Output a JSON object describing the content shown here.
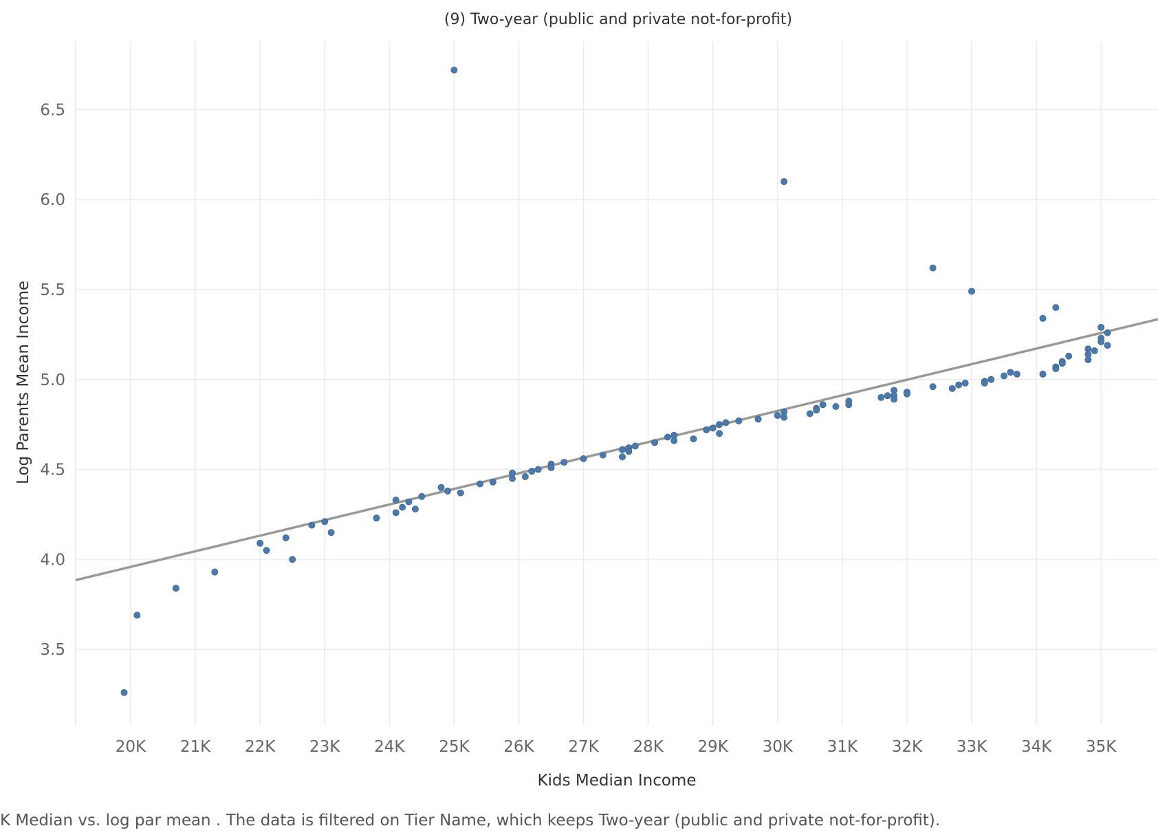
{
  "chart_data": {
    "type": "scatter",
    "title": "(9) Two-year (public and private not-for-profit)",
    "xlabel": "Kids Median Income",
    "ylabel": "Log Parents Mean Income",
    "xlim": [
      19150,
      35880
    ],
    "ylim": [
      3.08,
      6.88
    ],
    "x_ticks": [
      20000,
      21000,
      22000,
      23000,
      24000,
      25000,
      26000,
      27000,
      28000,
      29000,
      30000,
      31000,
      32000,
      33000,
      34000,
      35000
    ],
    "x_tick_labels": [
      "20K",
      "21K",
      "22K",
      "23K",
      "24K",
      "25K",
      "26K",
      "27K",
      "28K",
      "29K",
      "30K",
      "31K",
      "32K",
      "33K",
      "34K",
      "35K"
    ],
    "y_ticks": [
      3.5,
      4.0,
      4.5,
      5.0,
      5.5,
      6.0,
      6.5
    ],
    "y_tick_labels": [
      "3.5",
      "4.0",
      "4.5",
      "5.0",
      "5.5",
      "6.0",
      "6.5"
    ],
    "grid": true,
    "point_color": "#4e79a7",
    "trend_color": "#999999",
    "trend_line": {
      "x": [
        19150,
        35880
      ],
      "y": [
        3.885,
        5.335
      ]
    },
    "points": [
      {
        "x": 19900,
        "y": 3.26
      },
      {
        "x": 20100,
        "y": 3.69
      },
      {
        "x": 20700,
        "y": 3.84
      },
      {
        "x": 21300,
        "y": 3.93
      },
      {
        "x": 22000,
        "y": 4.09
      },
      {
        "x": 22100,
        "y": 4.05
      },
      {
        "x": 22400,
        "y": 4.12
      },
      {
        "x": 22500,
        "y": 4.0
      },
      {
        "x": 22800,
        "y": 4.19
      },
      {
        "x": 23000,
        "y": 4.21
      },
      {
        "x": 23100,
        "y": 4.15
      },
      {
        "x": 23800,
        "y": 4.23
      },
      {
        "x": 24100,
        "y": 4.33
      },
      {
        "x": 24100,
        "y": 4.26
      },
      {
        "x": 24200,
        "y": 4.29
      },
      {
        "x": 24300,
        "y": 4.32
      },
      {
        "x": 24400,
        "y": 4.28
      },
      {
        "x": 24500,
        "y": 4.35
      },
      {
        "x": 24800,
        "y": 4.4
      },
      {
        "x": 24900,
        "y": 4.38
      },
      {
        "x": 25000,
        "y": 6.72
      },
      {
        "x": 25100,
        "y": 4.37
      },
      {
        "x": 25400,
        "y": 4.42
      },
      {
        "x": 25600,
        "y": 4.43
      },
      {
        "x": 25900,
        "y": 4.48
      },
      {
        "x": 25900,
        "y": 4.45
      },
      {
        "x": 26100,
        "y": 4.46
      },
      {
        "x": 26200,
        "y": 4.49
      },
      {
        "x": 26300,
        "y": 4.5
      },
      {
        "x": 26500,
        "y": 4.53
      },
      {
        "x": 26500,
        "y": 4.51
      },
      {
        "x": 26700,
        "y": 4.54
      },
      {
        "x": 27000,
        "y": 4.56
      },
      {
        "x": 27300,
        "y": 4.58
      },
      {
        "x": 27600,
        "y": 4.61
      },
      {
        "x": 27600,
        "y": 4.57
      },
      {
        "x": 27700,
        "y": 4.62
      },
      {
        "x": 27700,
        "y": 4.6
      },
      {
        "x": 27800,
        "y": 4.63
      },
      {
        "x": 28100,
        "y": 4.65
      },
      {
        "x": 28300,
        "y": 4.68
      },
      {
        "x": 28400,
        "y": 4.69
      },
      {
        "x": 28400,
        "y": 4.66
      },
      {
        "x": 28700,
        "y": 4.67
      },
      {
        "x": 28900,
        "y": 4.72
      },
      {
        "x": 29000,
        "y": 4.73
      },
      {
        "x": 29100,
        "y": 4.75
      },
      {
        "x": 29100,
        "y": 4.7
      },
      {
        "x": 29200,
        "y": 4.76
      },
      {
        "x": 29400,
        "y": 4.77
      },
      {
        "x": 29700,
        "y": 4.78
      },
      {
        "x": 30000,
        "y": 4.8
      },
      {
        "x": 30100,
        "y": 4.82
      },
      {
        "x": 30100,
        "y": 4.79
      },
      {
        "x": 30100,
        "y": 6.1
      },
      {
        "x": 30500,
        "y": 4.81
      },
      {
        "x": 30600,
        "y": 4.84
      },
      {
        "x": 30600,
        "y": 4.83
      },
      {
        "x": 30700,
        "y": 4.86
      },
      {
        "x": 30900,
        "y": 4.85
      },
      {
        "x": 31100,
        "y": 4.88
      },
      {
        "x": 31100,
        "y": 4.86
      },
      {
        "x": 31600,
        "y": 4.9
      },
      {
        "x": 31700,
        "y": 4.91
      },
      {
        "x": 31800,
        "y": 4.94
      },
      {
        "x": 31800,
        "y": 4.91
      },
      {
        "x": 31800,
        "y": 4.89
      },
      {
        "x": 32000,
        "y": 4.93
      },
      {
        "x": 32000,
        "y": 4.92
      },
      {
        "x": 32400,
        "y": 4.96
      },
      {
        "x": 32400,
        "y": 5.62
      },
      {
        "x": 32700,
        "y": 4.95
      },
      {
        "x": 32800,
        "y": 4.97
      },
      {
        "x": 32900,
        "y": 4.98
      },
      {
        "x": 33000,
        "y": 5.49
      },
      {
        "x": 33200,
        "y": 4.99
      },
      {
        "x": 33200,
        "y": 4.98
      },
      {
        "x": 33300,
        "y": 5.0
      },
      {
        "x": 33500,
        "y": 5.02
      },
      {
        "x": 33600,
        "y": 5.04
      },
      {
        "x": 33700,
        "y": 5.03
      },
      {
        "x": 34100,
        "y": 5.34
      },
      {
        "x": 34100,
        "y": 5.03
      },
      {
        "x": 34300,
        "y": 5.4
      },
      {
        "x": 34300,
        "y": 5.07
      },
      {
        "x": 34300,
        "y": 5.06
      },
      {
        "x": 34400,
        "y": 5.1
      },
      {
        "x": 34400,
        "y": 5.09
      },
      {
        "x": 34500,
        "y": 5.13
      },
      {
        "x": 34800,
        "y": 5.17
      },
      {
        "x": 34800,
        "y": 5.14
      },
      {
        "x": 34800,
        "y": 5.11
      },
      {
        "x": 34900,
        "y": 5.16
      },
      {
        "x": 35000,
        "y": 5.29
      },
      {
        "x": 35000,
        "y": 5.23
      },
      {
        "x": 35000,
        "y": 5.21
      },
      {
        "x": 35100,
        "y": 5.26
      },
      {
        "x": 35100,
        "y": 5.19
      }
    ]
  },
  "caption": "K Median vs. log par mean . The data is filtered on Tier Name, which keeps Two-year (public and private not-for-profit)."
}
